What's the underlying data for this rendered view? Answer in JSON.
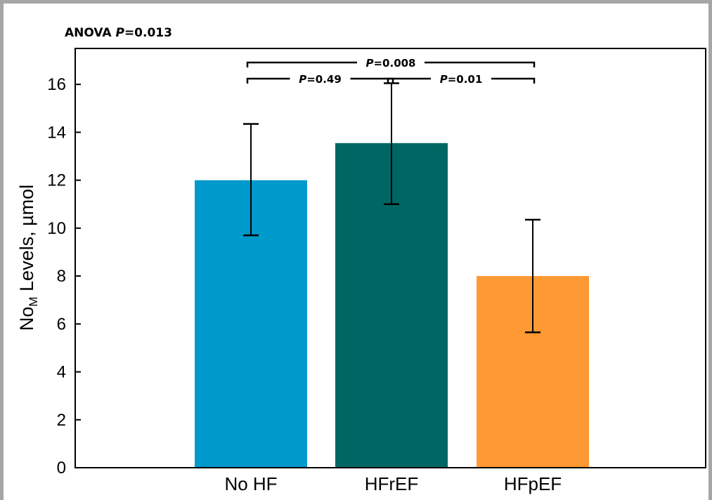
{
  "chart_data": {
    "type": "bar",
    "annotation_top_left": {
      "label": "ANOVA ",
      "p_symbol": "P",
      "value": "=0.013"
    },
    "ylabel": {
      "pre": "No",
      "sub": "M",
      "post": " Levels, µmol"
    },
    "xlabel": "",
    "ylim": [
      0,
      17.5
    ],
    "yticks": [
      0,
      2,
      4,
      6,
      8,
      10,
      12,
      14,
      16
    ],
    "categories": [
      "No HF",
      "HFrEF",
      "HFpEF"
    ],
    "values": [
      12.0,
      13.55,
      8.0
    ],
    "error_low": [
      9.7,
      11.0,
      5.65
    ],
    "error_high": [
      14.35,
      16.05,
      10.35
    ],
    "colors": [
      "#0099cc",
      "#006663",
      "#ff9933"
    ],
    "comparisons": [
      {
        "from": 0,
        "to": 2,
        "p_symbol": "P",
        "value": "=0.008",
        "level": 2
      },
      {
        "from": 0,
        "to": 1,
        "p_symbol": "P",
        "value": "=0.49",
        "level": 1
      },
      {
        "from": 1,
        "to": 2,
        "p_symbol": "P",
        "value": "=0.01",
        "level": 1
      }
    ]
  }
}
